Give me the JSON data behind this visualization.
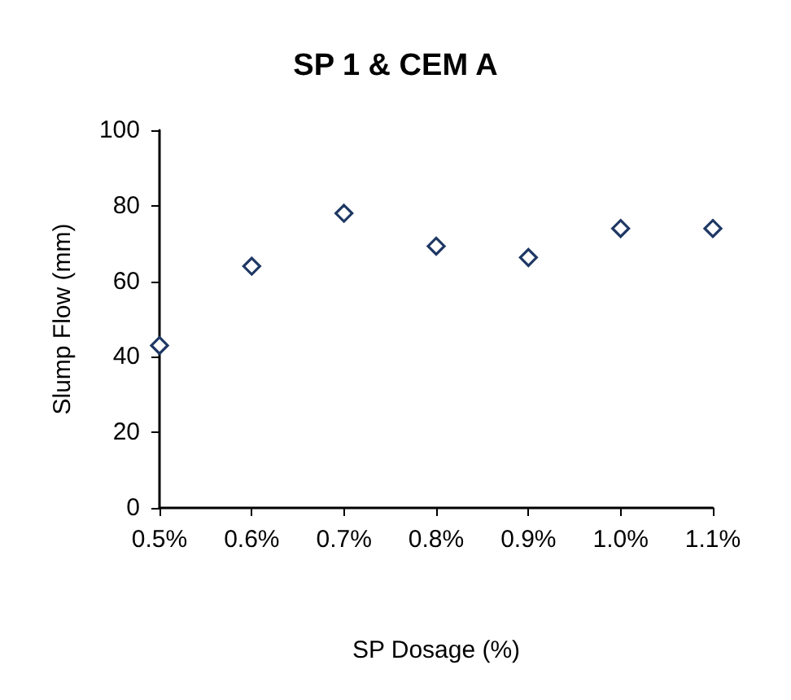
{
  "chart_data": {
    "type": "scatter",
    "title": "SP 1 & CEM A",
    "xlabel": "SP Dosage (%)",
    "ylabel": "Slump Flow (mm)",
    "x": [
      0.5,
      0.6,
      0.7,
      0.8,
      0.9,
      1.0,
      1.1
    ],
    "values": [
      43,
      64,
      78,
      69.3,
      66.3,
      74,
      74
    ],
    "color": "#1f3864",
    "marker": "diamond",
    "grid": false,
    "xlim": [
      0.5,
      1.1
    ],
    "xticks": [
      {
        "value": 0.5,
        "label": "0.5%"
      },
      {
        "value": 0.6,
        "label": "0.6%"
      },
      {
        "value": 0.7,
        "label": "0.7%"
      },
      {
        "value": 0.8,
        "label": "0.8%"
      },
      {
        "value": 0.9,
        "label": "0.9%"
      },
      {
        "value": 1.0,
        "label": "1.0%"
      },
      {
        "value": 1.1,
        "label": "1.1%"
      }
    ],
    "ylim": [
      0,
      100
    ],
    "yticks": [
      0,
      20,
      40,
      60,
      80,
      100
    ]
  }
}
